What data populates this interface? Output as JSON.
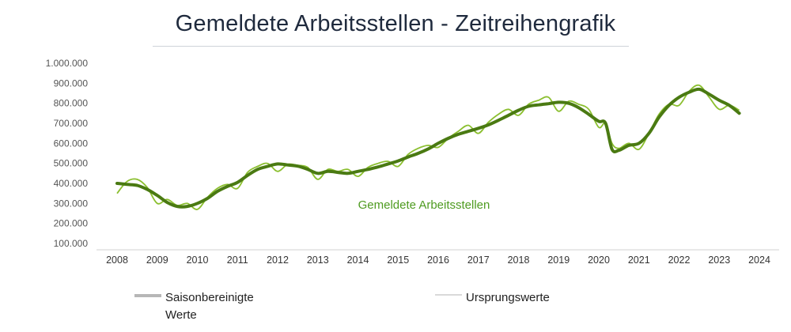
{
  "title": "Gemeldete Arbeitsstellen - Zeitreihengrafik",
  "legend": [
    {
      "label": "Saisonbereinigte Werte",
      "color": "#b7b7b7"
    },
    {
      "label": "Ursprungswerte",
      "color": "#d9d9d9"
    }
  ],
  "colors": {
    "seasonal_line": "#4a7a12",
    "original_line": "#8bbf2f",
    "annotation": "#4e9b20"
  },
  "chart_data": {
    "type": "line",
    "title": "Gemeldete Arbeitsstellen - Zeitreihengrafik",
    "annotation": "Gemeldete Arbeitsstellen",
    "x_ticks": [
      "2008",
      "2009",
      "2010",
      "2011",
      "2012",
      "2013",
      "2014",
      "2015",
      "2016",
      "2017",
      "2018",
      "2019",
      "2020",
      "2021",
      "2022",
      "2023",
      "2024"
    ],
    "y_ticks": [
      "100.000",
      "200.000",
      "300.000",
      "400.000",
      "500.000",
      "600.000",
      "700.000",
      "800.000",
      "900.000",
      "1.000.000"
    ],
    "xlim": [
      2008,
      2024
    ],
    "ylim": [
      100000,
      1000000
    ],
    "legend_position": "bottom",
    "grid": false,
    "series": [
      {
        "name": "Saisonbereinigte Werte",
        "x": [
          2008.0,
          2008.25,
          2008.5,
          2008.75,
          2009.0,
          2009.25,
          2009.5,
          2009.75,
          2010.0,
          2010.25,
          2010.5,
          2010.75,
          2011.0,
          2011.25,
          2011.5,
          2011.75,
          2012.0,
          2012.25,
          2012.5,
          2012.75,
          2013.0,
          2013.25,
          2013.5,
          2013.75,
          2014.0,
          2014.25,
          2014.5,
          2014.75,
          2015.0,
          2015.25,
          2015.5,
          2015.75,
          2016.0,
          2016.25,
          2016.5,
          2016.75,
          2017.0,
          2017.25,
          2017.5,
          2017.75,
          2018.0,
          2018.25,
          2018.5,
          2018.75,
          2019.0,
          2019.25,
          2019.5,
          2019.75,
          2020.0,
          2020.17,
          2020.33,
          2020.5,
          2020.75,
          2021.0,
          2021.25,
          2021.5,
          2021.75,
          2022.0,
          2022.25,
          2022.5,
          2022.75,
          2023.0,
          2023.25,
          2023.5
        ],
        "values": [
          400000,
          395000,
          390000,
          370000,
          340000,
          305000,
          285000,
          285000,
          300000,
          325000,
          360000,
          385000,
          405000,
          440000,
          470000,
          485000,
          497000,
          492000,
          486000,
          470000,
          450000,
          460000,
          455000,
          450000,
          460000,
          470000,
          482000,
          497000,
          512000,
          532000,
          550000,
          572000,
          600000,
          625000,
          645000,
          660000,
          675000,
          692000,
          715000,
          740000,
          765000,
          785000,
          792000,
          798000,
          805000,
          800000,
          778000,
          745000,
          710000,
          700000,
          570000,
          565000,
          590000,
          600000,
          650000,
          730000,
          790000,
          830000,
          855000,
          870000,
          845000,
          815000,
          790000,
          750000
        ]
      },
      {
        "name": "Ursprungswerte",
        "x": [
          2008.0,
          2008.25,
          2008.5,
          2008.75,
          2009.0,
          2009.25,
          2009.5,
          2009.75,
          2010.0,
          2010.25,
          2010.5,
          2010.75,
          2011.0,
          2011.25,
          2011.5,
          2011.75,
          2012.0,
          2012.25,
          2012.5,
          2012.75,
          2013.0,
          2013.25,
          2013.5,
          2013.75,
          2014.0,
          2014.25,
          2014.5,
          2014.75,
          2015.0,
          2015.25,
          2015.5,
          2015.75,
          2016.0,
          2016.25,
          2016.5,
          2016.75,
          2017.0,
          2017.25,
          2017.5,
          2017.75,
          2018.0,
          2018.25,
          2018.5,
          2018.75,
          2019.0,
          2019.25,
          2019.5,
          2019.75,
          2020.0,
          2020.17,
          2020.33,
          2020.5,
          2020.75,
          2021.0,
          2021.25,
          2021.5,
          2021.75,
          2022.0,
          2022.25,
          2022.5,
          2022.75,
          2023.0,
          2023.25,
          2023.5
        ],
        "values": [
          350000,
          410000,
          420000,
          380000,
          300000,
          320000,
          290000,
          300000,
          270000,
          330000,
          375000,
          395000,
          375000,
          455000,
          485000,
          500000,
          460000,
          495000,
          490000,
          480000,
          420000,
          470000,
          460000,
          470000,
          435000,
          480000,
          500000,
          510000,
          485000,
          545000,
          575000,
          590000,
          580000,
          625000,
          660000,
          690000,
          650000,
          705000,
          745000,
          770000,
          740000,
          795000,
          815000,
          830000,
          760000,
          810000,
          795000,
          770000,
          680000,
          700000,
          600000,
          575000,
          600000,
          570000,
          650000,
          745000,
          795000,
          790000,
          860000,
          890000,
          830000,
          770000,
          790000,
          765000
        ]
      }
    ]
  }
}
